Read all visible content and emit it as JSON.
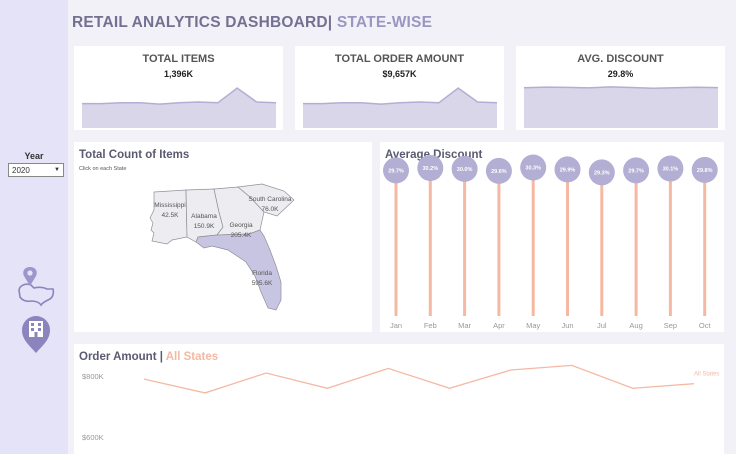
{
  "header": {
    "title_main": "RETAIL ANALYTICS DASHBOARD|",
    "title_sub": " STATE-WISE"
  },
  "filter": {
    "label": "Year",
    "selected": "2020"
  },
  "kpis": [
    {
      "title": "TOTAL ITEMS",
      "value": "1,396K"
    },
    {
      "title": "TOTAL ORDER AMOUNT",
      "value": "$9,657K"
    },
    {
      "title": "AVG. DISCOUNT",
      "value": "29.8%"
    }
  ],
  "colors": {
    "accent_purple": "#b3aed3",
    "light_purple": "#d9d6ea",
    "peach": "#f5b9a3",
    "sidebar": "#e4e3f7"
  },
  "icons": [
    "location-map-icon",
    "building-pin-icon"
  ],
  "map": {
    "title": "Total Count of Items",
    "subtitle": "Click on each State",
    "states": [
      {
        "name": "Mississippi",
        "value": "42.5K"
      },
      {
        "name": "Alabama",
        "value": "150.9K"
      },
      {
        "name": "Georgia",
        "value": "205.4K"
      },
      {
        "name": "South Carolina",
        "value": "76.0K"
      },
      {
        "name": "Florida",
        "value": "595.6K"
      }
    ]
  },
  "chart_data": [
    {
      "type": "line",
      "title": "TOTAL ITEMS sparkline",
      "values": [
        0.58,
        0.58,
        0.6,
        0.6,
        0.57,
        0.6,
        0.62,
        0.6,
        0.95,
        0.62,
        0.6
      ],
      "ylim": [
        0,
        1
      ]
    },
    {
      "type": "line",
      "title": "TOTAL ORDER AMOUNT sparkline",
      "values": [
        0.58,
        0.58,
        0.6,
        0.6,
        0.57,
        0.6,
        0.62,
        0.6,
        0.95,
        0.62,
        0.6
      ],
      "ylim": [
        0,
        1
      ]
    },
    {
      "type": "area",
      "title": "AVG. DISCOUNT sparkline",
      "values": [
        29.7,
        30.2,
        30.0,
        29.6,
        30.3,
        29.9,
        29.3,
        29.7,
        30.1,
        29.8
      ],
      "ylim": [
        0,
        31
      ]
    },
    {
      "type": "bar",
      "title": "Average Discount",
      "categories": [
        "Jan",
        "Feb",
        "Mar",
        "Apr",
        "May",
        "Jun",
        "Jul",
        "Aug",
        "Sep",
        "Oct"
      ],
      "values": [
        29.7,
        30.2,
        30.0,
        29.6,
        30.3,
        29.9,
        29.3,
        29.7,
        30.1,
        29.8
      ],
      "labels": [
        "29.7%",
        "30.2%",
        "30.0%",
        "29.6%",
        "30.3%",
        "29.9%",
        "29.3%",
        "29.7%",
        "30.1%",
        "29.8%"
      ],
      "ylim": [
        0,
        30.6
      ]
    },
    {
      "type": "line",
      "title_main": "Order Amount | ",
      "title_accent": "All States",
      "series": [
        {
          "name": "All States",
          "values": [
            790,
            745,
            810,
            760,
            825,
            760,
            820,
            835,
            760,
            775
          ]
        }
      ],
      "yticks": [
        {
          "value": 800,
          "label": "$800K"
        },
        {
          "value": 600,
          "label": "$600K"
        }
      ],
      "ylim": [
        545,
        905
      ]
    }
  ]
}
